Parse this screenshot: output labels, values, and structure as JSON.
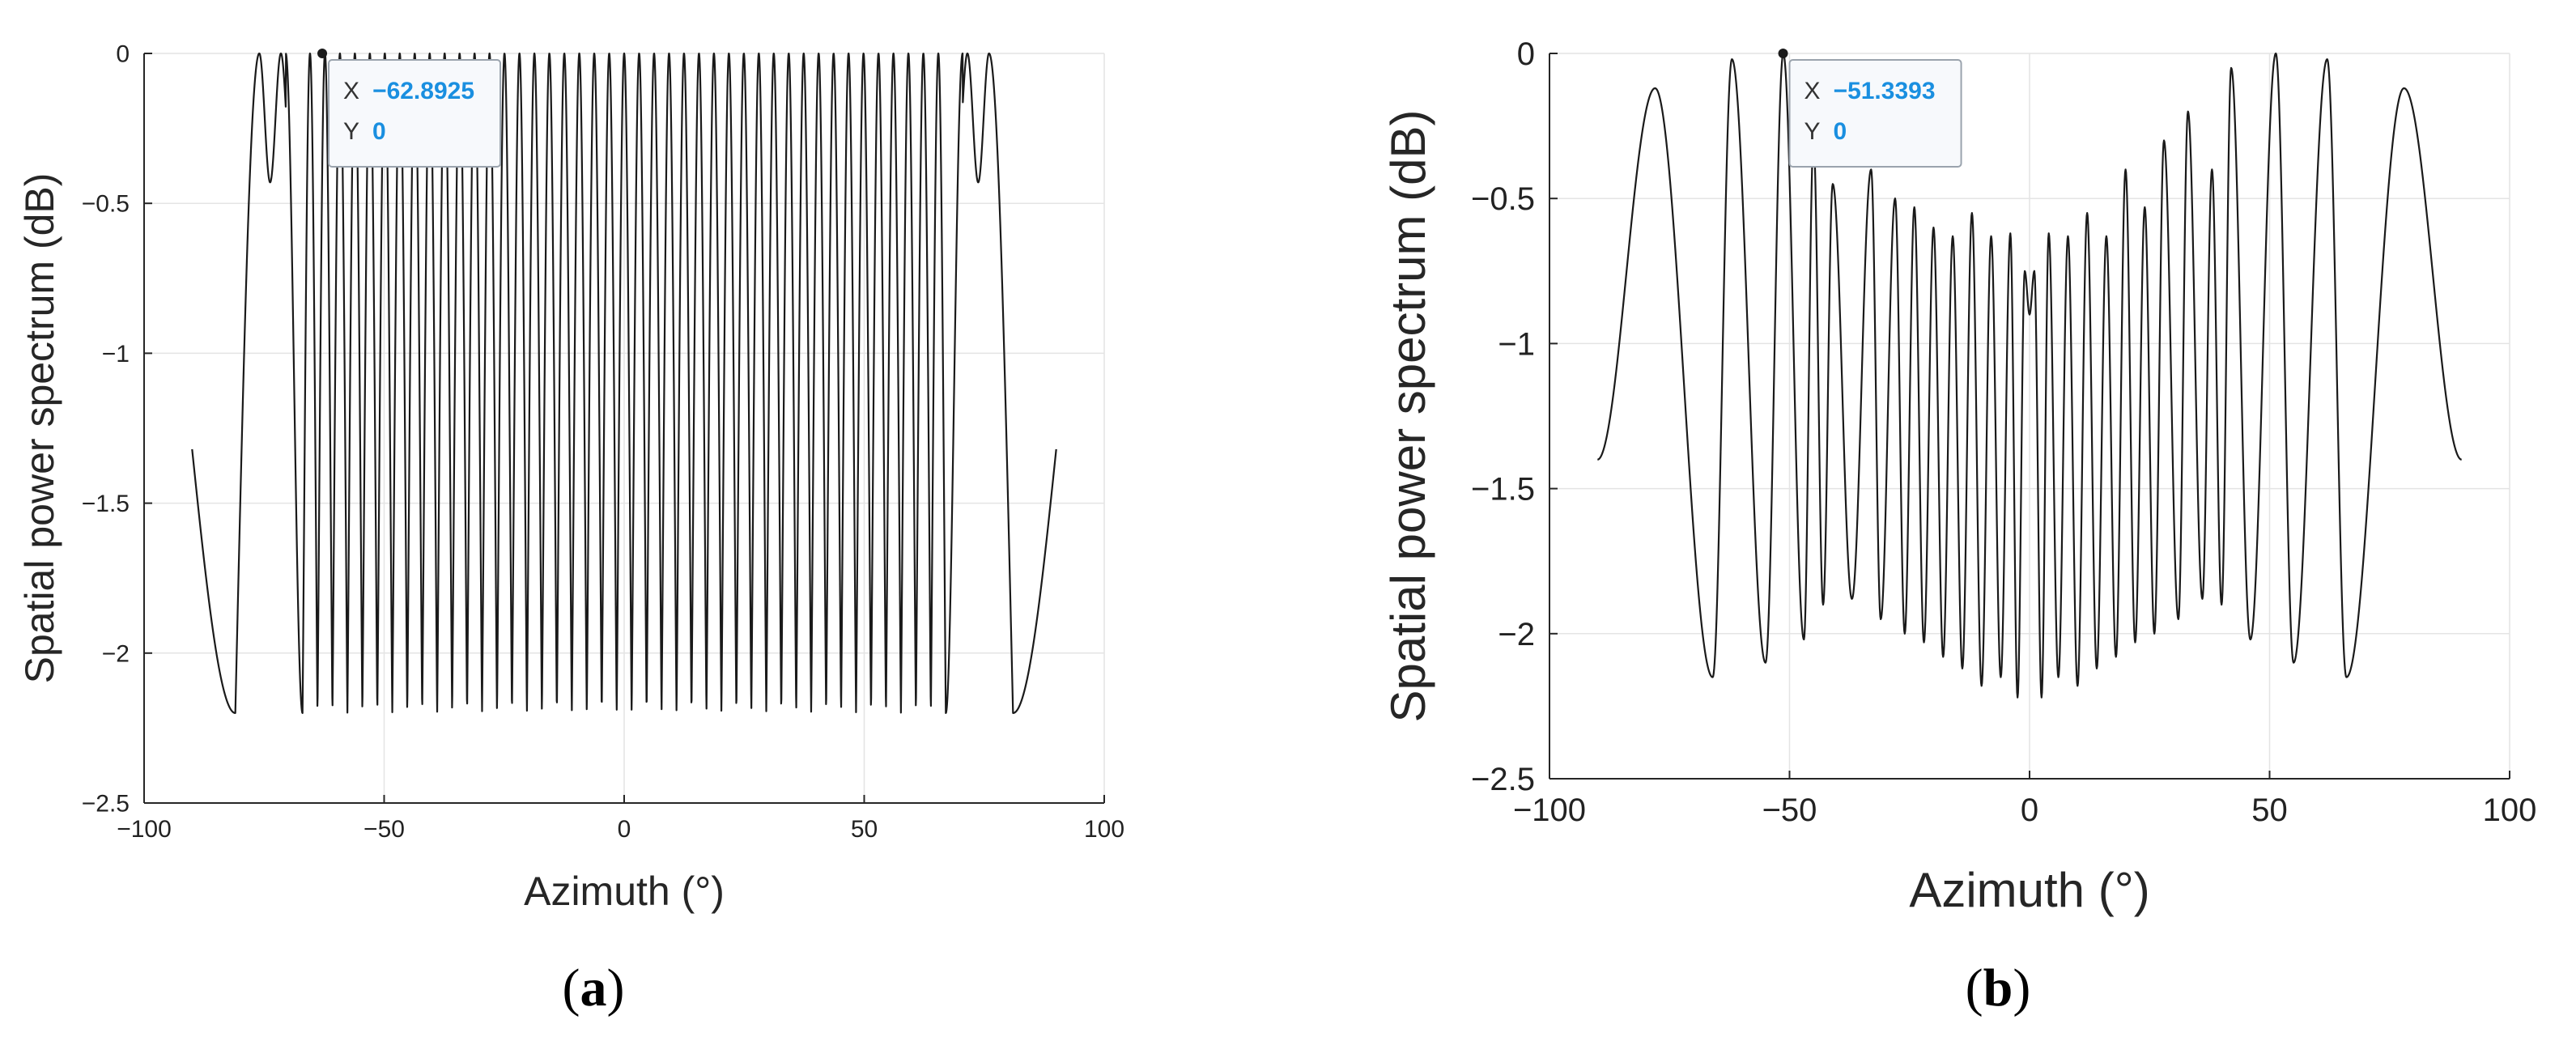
{
  "chart_data": [
    {
      "type": "line",
      "panel_label": "a",
      "xlabel": "Azimuth (°)",
      "ylabel": "Spatial power spectrum (dB)",
      "xlim": [
        -100,
        100
      ],
      "ylim": [
        -2.5,
        0
      ],
      "x_ticks": [
        -100,
        -50,
        0,
        50,
        100
      ],
      "x_tick_labels": [
        "−100",
        "−50",
        "0",
        "50",
        "100"
      ],
      "y_ticks": [
        0,
        -0.5,
        -1,
        -1.5,
        -2,
        -2.5
      ],
      "y_tick_labels": [
        "0",
        "−0.5",
        "−1",
        "−1.5",
        "−2",
        "−2.5"
      ],
      "grid": true,
      "series": [
        {
          "x_range": [
            -90,
            90
          ],
          "description_values": {
            "endpoint_y": -1.32,
            "outer_trough_azimuth": [
              -81,
              81
            ],
            "outer_trough_y": -2.2,
            "peak_y": 0,
            "ripple_trough_y": -2.2,
            "edge_dip_y": -0.43,
            "inner_oscillation_count": 43,
            "main_lobe_edges": [
              -76,
              76
            ]
          }
        }
      ],
      "datatip": {
        "x_key": "X",
        "x_value": "−62.8925",
        "y_key": "Y",
        "y_value": "0",
        "x": -62.8925,
        "y": 0
      }
    },
    {
      "type": "line",
      "panel_label": "b",
      "xlabel": "Azimuth (°)",
      "ylabel": "Spatial power spectrum (dB)",
      "xlim": [
        -100,
        100
      ],
      "ylim": [
        -2.5,
        0
      ],
      "x_ticks": [
        -100,
        -50,
        0,
        50,
        100
      ],
      "x_tick_labels": [
        "−100",
        "−50",
        "0",
        "50",
        "100"
      ],
      "y_ticks": [
        0,
        -0.5,
        -1,
        -1.5,
        -2,
        -2.5
      ],
      "y_tick_labels": [
        "0",
        "−0.5",
        "−1",
        "−1.5",
        "−2",
        "−2.5"
      ],
      "grid": true,
      "series": [
        {
          "x_range": [
            -90,
            90
          ],
          "peaks": [
            {
              "x": -78,
              "y": -0.12
            },
            {
              "x": -62,
              "y": -0.02
            },
            {
              "x": -51.3,
              "y": 0
            },
            {
              "x": -45,
              "y": -0.3
            },
            {
              "x": -41,
              "y": -0.45
            },
            {
              "x": -33,
              "y": -0.4
            },
            {
              "x": -28,
              "y": -0.5
            },
            {
              "x": -24,
              "y": -0.53
            },
            {
              "x": -20,
              "y": -0.6
            },
            {
              "x": -16,
              "y": -0.63
            },
            {
              "x": -12,
              "y": -0.55
            },
            {
              "x": -8,
              "y": -0.63
            },
            {
              "x": -4,
              "y": -0.62
            },
            {
              "x": -1,
              "y": -0.75
            },
            {
              "x": 1,
              "y": -0.75
            },
            {
              "x": 4,
              "y": -0.62
            },
            {
              "x": 8,
              "y": -0.63
            },
            {
              "x": 12,
              "y": -0.55
            },
            {
              "x": 16,
              "y": -0.63
            },
            {
              "x": 20,
              "y": -0.4
            },
            {
              "x": 24,
              "y": -0.53
            },
            {
              "x": 28,
              "y": -0.3
            },
            {
              "x": 33,
              "y": -0.2
            },
            {
              "x": 38,
              "y": -0.4
            },
            {
              "x": 42,
              "y": -0.05
            },
            {
              "x": 51.3,
              "y": 0
            },
            {
              "x": 62,
              "y": -0.02
            },
            {
              "x": 78,
              "y": -0.12
            }
          ],
          "troughs": [
            {
              "x": -90,
              "y": -1.4
            },
            {
              "x": -66,
              "y": -2.15
            },
            {
              "x": -55,
              "y": -2.1
            },
            {
              "x": -47,
              "y": -2.02
            },
            {
              "x": -43,
              "y": -1.9
            },
            {
              "x": -37,
              "y": -1.88
            },
            {
              "x": -31,
              "y": -1.95
            },
            {
              "x": -26,
              "y": -2.0
            },
            {
              "x": -22,
              "y": -2.03
            },
            {
              "x": -18,
              "y": -2.08
            },
            {
              "x": -14,
              "y": -2.12
            },
            {
              "x": -10,
              "y": -2.18
            },
            {
              "x": -6,
              "y": -2.15
            },
            {
              "x": -2.5,
              "y": -2.22
            },
            {
              "x": 0,
              "y": -0.9
            },
            {
              "x": 2.5,
              "y": -2.22
            },
            {
              "x": 6,
              "y": -2.15
            },
            {
              "x": 10,
              "y": -2.18
            },
            {
              "x": 14,
              "y": -2.12
            },
            {
              "x": 18,
              "y": -2.08
            },
            {
              "x": 22,
              "y": -2.03
            },
            {
              "x": 26,
              "y": -2.0
            },
            {
              "x": 31,
              "y": -1.95
            },
            {
              "x": 36,
              "y": -1.88
            },
            {
              "x": 40,
              "y": -1.9
            },
            {
              "x": 46,
              "y": -2.02
            },
            {
              "x": 55,
              "y": -2.1
            },
            {
              "x": 66,
              "y": -2.15
            },
            {
              "x": 90,
              "y": -1.4
            }
          ]
        }
      ],
      "datatip": {
        "x_key": "X",
        "x_value": "−51.3393",
        "y_key": "Y",
        "y_value": "0",
        "x": -51.3393,
        "y": 0
      }
    }
  ]
}
